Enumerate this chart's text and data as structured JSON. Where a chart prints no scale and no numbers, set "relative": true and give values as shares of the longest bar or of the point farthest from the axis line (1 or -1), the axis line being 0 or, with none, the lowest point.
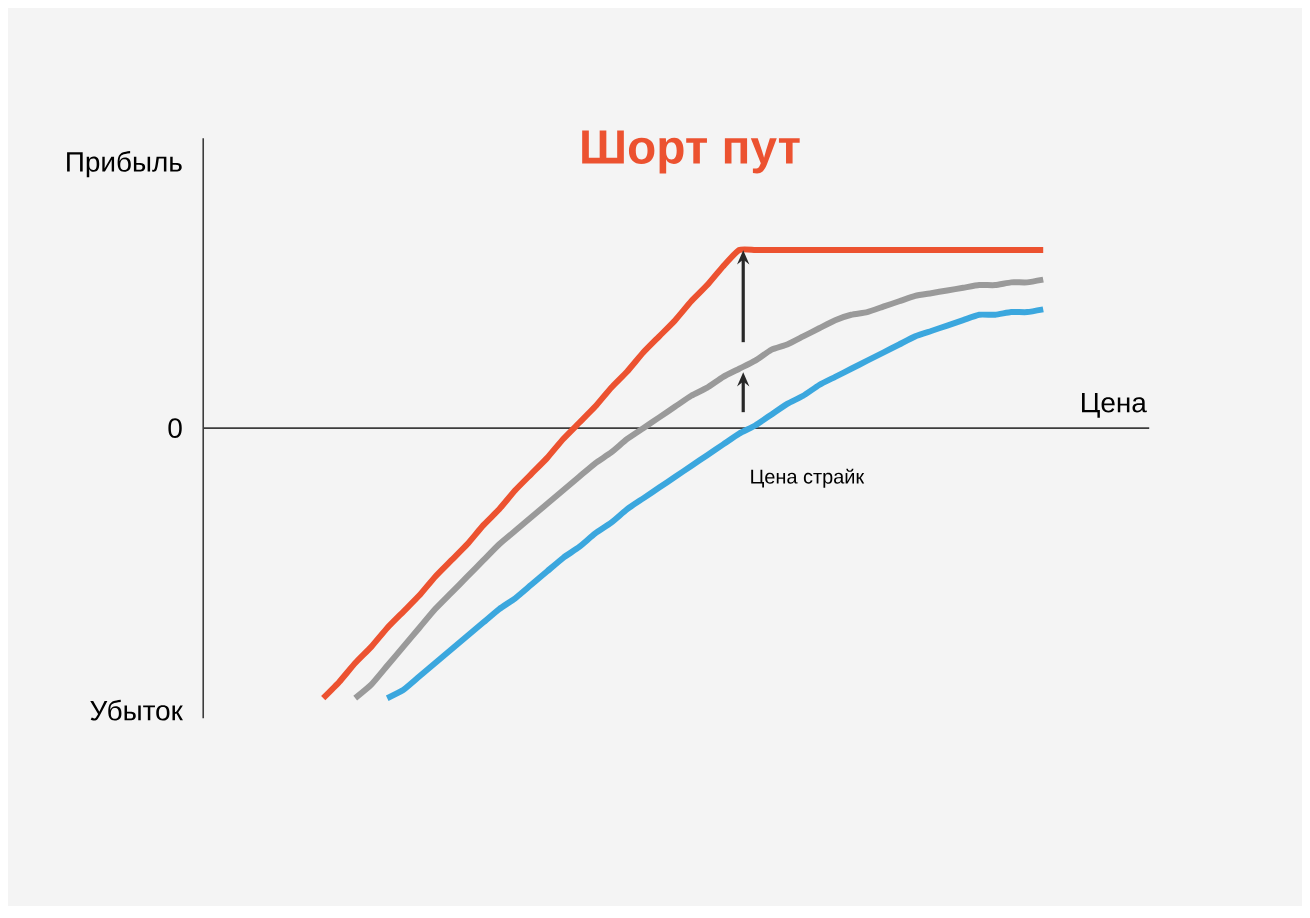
{
  "chart_data": {
    "type": "line",
    "title": "Шорт пут",
    "xlabel": "Цена",
    "relative": true,
    "categories": [
      null,
      null,
      null,
      null,
      null,
      null,
      null,
      null,
      null,
      null,
      null,
      null,
      null,
      null,
      null,
      null,
      null,
      null,
      null,
      null,
      null,
      null,
      null,
      null,
      null,
      null,
      null,
      null,
      null,
      null,
      null,
      null,
      null,
      null,
      null,
      null,
      null,
      null,
      null,
      null,
      null,
      null,
      null,
      null,
      null,
      null
    ],
    "series": [
      {
        "color": "#ec5230",
        "values": [
          -1.0,
          -0.94,
          -0.87,
          -0.81,
          -0.74,
          -0.68,
          -0.62,
          -0.55,
          -0.49,
          -0.43,
          -0.36,
          -0.3,
          -0.23,
          -0.17,
          -0.11,
          -0.04,
          0.02,
          0.08,
          0.15,
          0.21,
          0.28,
          0.34,
          0.4,
          0.47,
          0.53,
          0.6,
          0.66,
          0.66,
          0.66,
          0.66,
          0.66,
          0.66,
          0.66,
          0.66,
          0.66,
          0.66,
          0.66,
          0.66,
          0.66,
          0.66,
          0.66,
          0.66,
          0.66,
          0.66,
          0.66,
          0.66
        ]
      },
      {
        "color": "#9a9a9a",
        "values": [
          null,
          null,
          -1.0,
          -0.95,
          -0.88,
          -0.81,
          -0.74,
          -0.67,
          -0.61,
          -0.55,
          -0.49,
          -0.43,
          -0.38,
          -0.33,
          -0.28,
          -0.23,
          -0.18,
          -0.13,
          -0.09,
          -0.04,
          0.0,
          0.04,
          0.08,
          0.12,
          0.15,
          0.19,
          0.22,
          0.25,
          0.29,
          0.31,
          0.34,
          0.37,
          0.4,
          0.42,
          0.43,
          0.45,
          0.47,
          0.49,
          0.5,
          0.51,
          0.52,
          0.53,
          0.53,
          0.54,
          0.54,
          0.55
        ]
      },
      {
        "color": "#3ba7de",
        "values": [
          null,
          null,
          null,
          null,
          -1.0,
          -0.97,
          -0.92,
          -0.87,
          -0.82,
          -0.77,
          -0.72,
          -0.67,
          -0.63,
          -0.58,
          -0.53,
          -0.48,
          -0.44,
          -0.39,
          -0.35,
          -0.3,
          -0.26,
          -0.22,
          -0.18,
          -0.14,
          -0.1,
          -0.06,
          -0.02,
          0.01,
          0.05,
          0.09,
          0.12,
          0.16,
          0.19,
          0.22,
          0.25,
          0.28,
          0.31,
          0.34,
          0.36,
          0.38,
          0.4,
          0.42,
          0.42,
          0.43,
          0.43,
          0.44
        ]
      }
    ],
    "annotations": [
      "Прибыль",
      "0",
      "Убыток",
      "Цена страйк"
    ]
  }
}
